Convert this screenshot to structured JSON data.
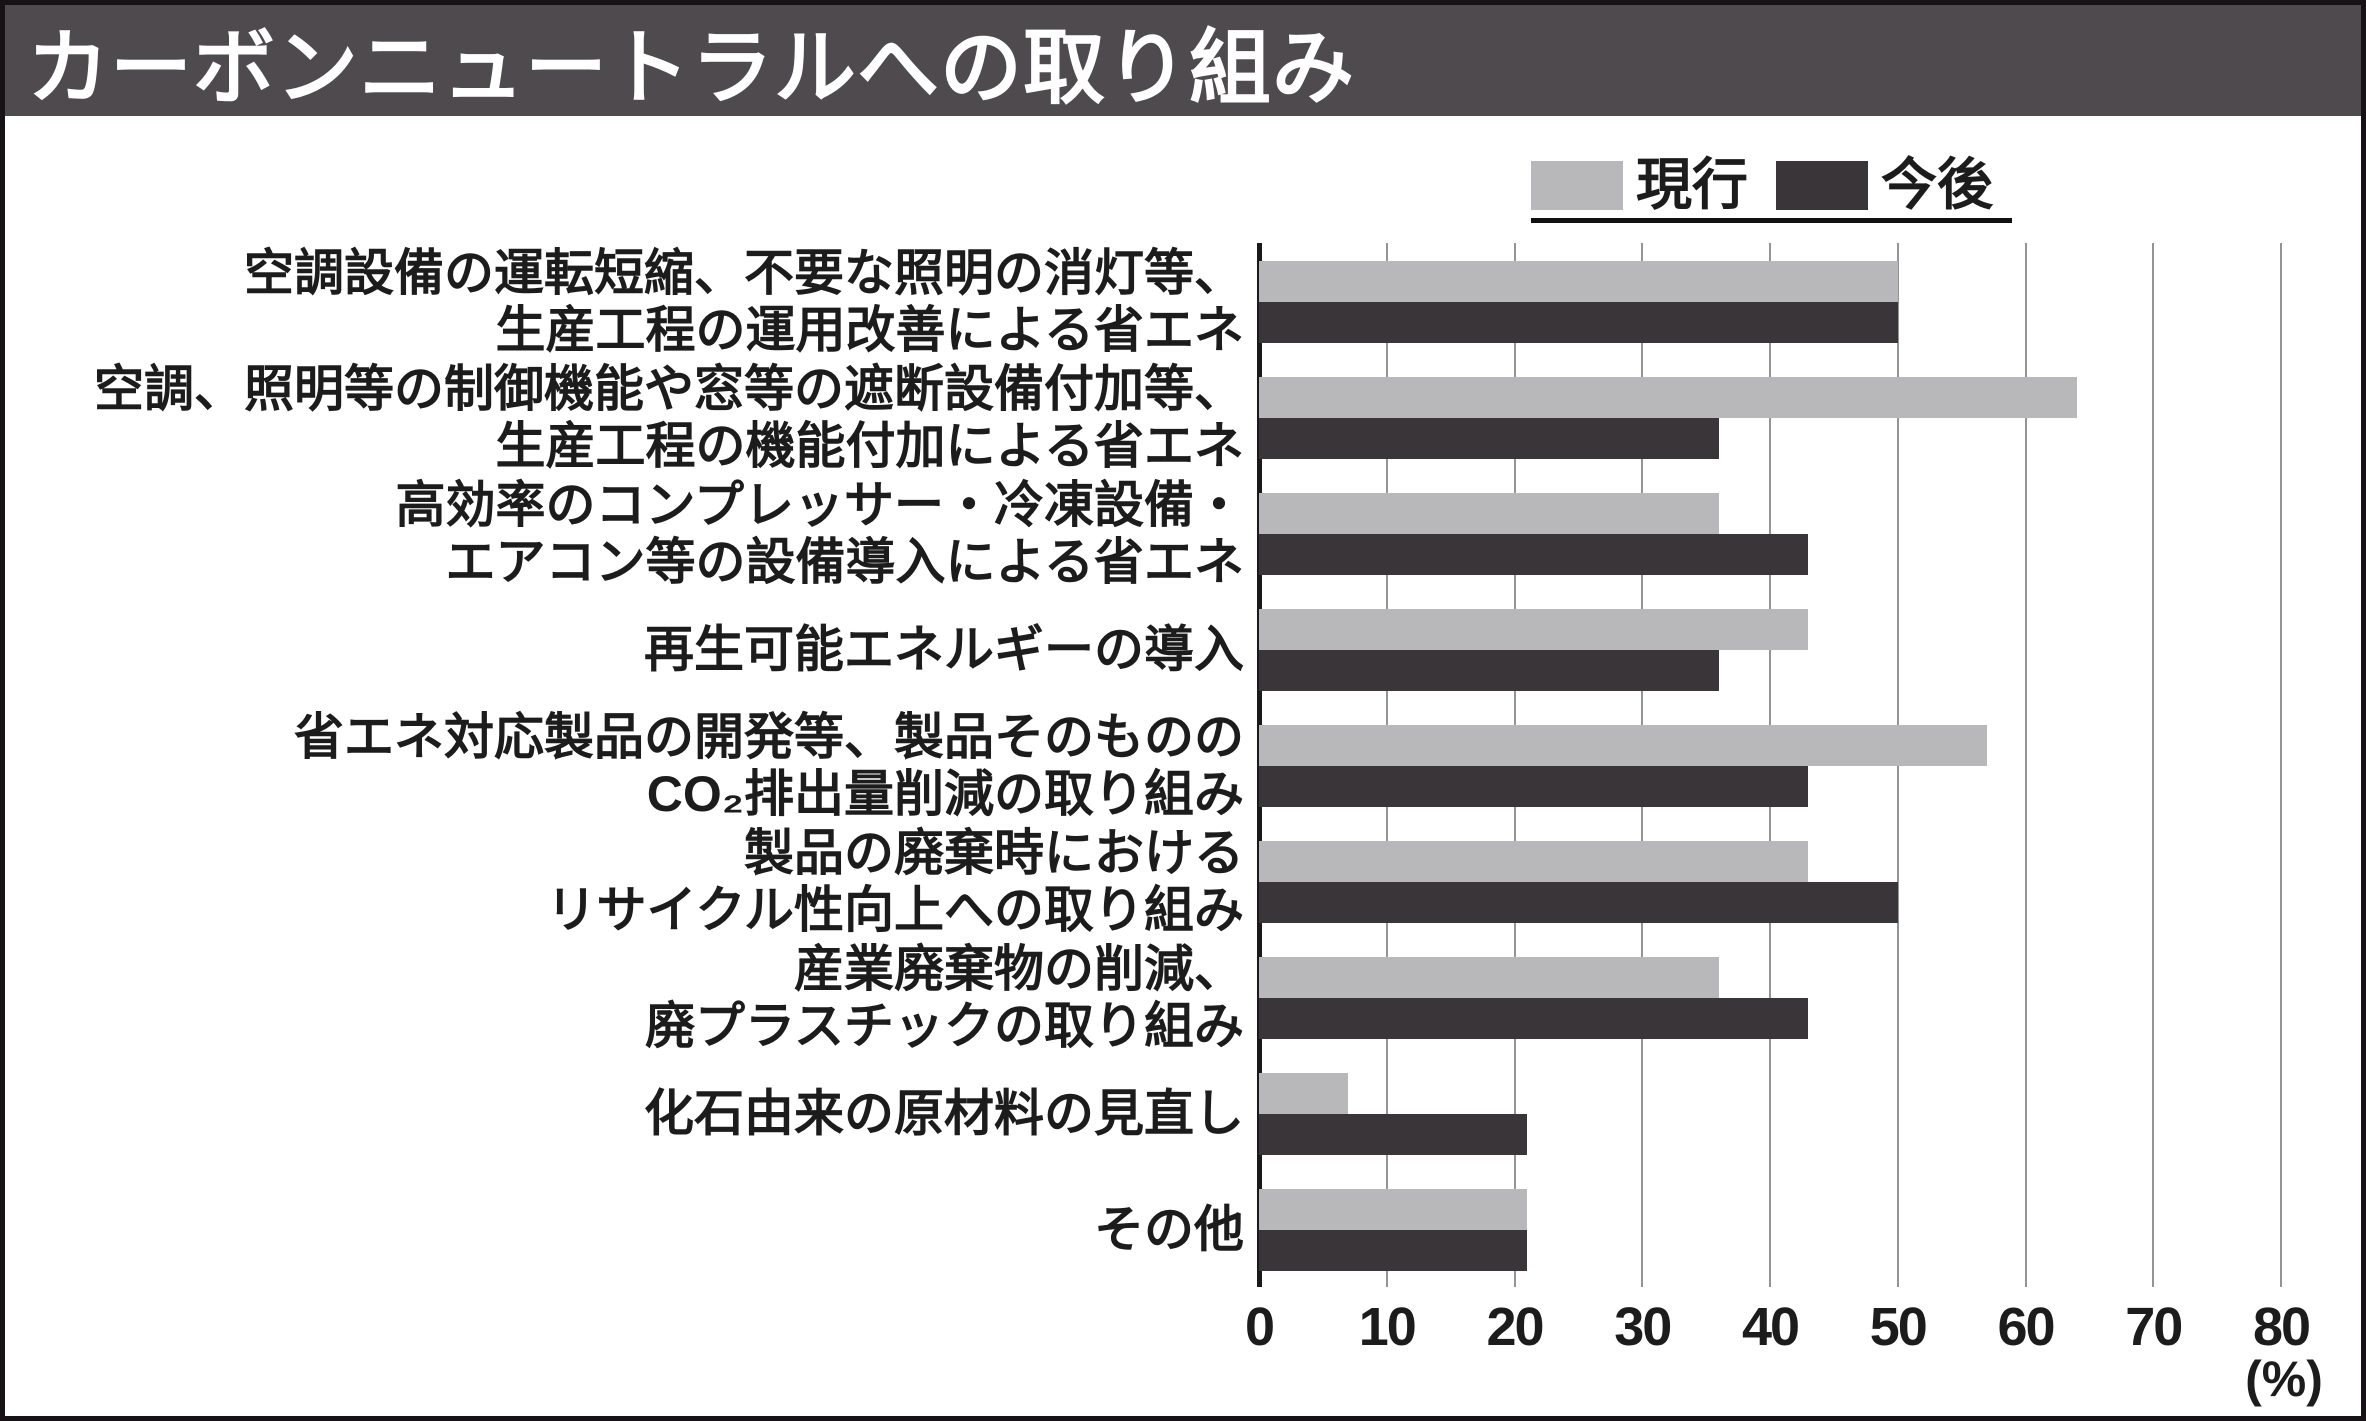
{
  "title": "カーボンニュートラルへの取り組み",
  "legend": {
    "current_label": "現行",
    "future_label": "今後"
  },
  "axis": {
    "ticks": [
      0,
      10,
      20,
      30,
      40,
      50,
      60,
      70,
      80
    ],
    "unit_label": "(%)"
  },
  "colors": {
    "banner_bg": "#4e4a4e",
    "banner_text": "#ffffff",
    "current_bar": "#b8b8ba",
    "future_bar": "#3a3538",
    "gridline": "#949494",
    "axis_line": "#1a1a1a",
    "text": "#1c1c1c",
    "legend_underline": "#111111"
  },
  "chart_data": {
    "type": "bar",
    "orientation": "horizontal",
    "title": "カーボンニュートラルへの取り組み",
    "xlabel": "(%)",
    "xlim": [
      0,
      80
    ],
    "grid": true,
    "legend_position": "top-right",
    "categories": [
      {
        "label": "空調設備の運転短縮、不要な照明の消灯等、生産工程の運用改善による省エネ",
        "lines": [
          "空調設備の運転短縮、不要な照明の消灯等、",
          "生産工程の運用改善による省エネ"
        ]
      },
      {
        "label": "空調、照明等の制御機能や窓等の遮断設備付加等、生産工程の機能付加による省エネ",
        "lines": [
          "空調、照明等の制御機能や窓等の遮断設備付加等、",
          "生産工程の機能付加による省エネ"
        ]
      },
      {
        "label": "高効率のコンプレッサー・冷凍設備・エアコン等の設備導入による省エネ",
        "lines": [
          "高効率のコンプレッサー・冷凍設備・",
          "エアコン等の設備導入による省エネ"
        ]
      },
      {
        "label": "再生可能エネルギーの導入",
        "lines": [
          "再生可能エネルギーの導入"
        ]
      },
      {
        "label": "省エネ対応製品の開発等、製品そのもののCO₂排出量削減の取り組み",
        "lines": [
          "省エネ対応製品の開発等、製品そのものの",
          "CO₂排出量削減の取り組み"
        ]
      },
      {
        "label": "製品の廃棄時におけるリサイクル性向上への取り組み",
        "lines": [
          "製品の廃棄時における",
          "リサイクル性向上への取り組み"
        ]
      },
      {
        "label": "産業廃棄物の削減、廃プラスチックの取り組み",
        "lines": [
          "産業廃棄物の削減、",
          "廃プラスチックの取り組み"
        ]
      },
      {
        "label": "化石由来の原材料の見直し",
        "lines": [
          "化石由来の原材料の見直し"
        ]
      },
      {
        "label": "その他",
        "lines": [
          "その他"
        ]
      }
    ],
    "series": [
      {
        "name": "現行",
        "values": [
          50,
          64,
          36,
          43,
          57,
          43,
          36,
          7,
          21
        ]
      },
      {
        "name": "今後",
        "values": [
          50,
          36,
          43,
          36,
          43,
          50,
          43,
          21,
          21
        ]
      }
    ]
  }
}
